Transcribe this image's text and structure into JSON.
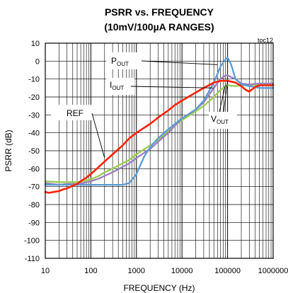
{
  "chart_data": {
    "type": "line",
    "title_line1": "PSRR vs. FREQUENCY",
    "title_line2": "(10mV/100µA RANGES)",
    "tag": "toc12",
    "xlabel": "FREQUENCY (Hz)",
    "ylabel": "PSRR (dB)",
    "xscale": "log",
    "xlim": [
      10,
      1000000
    ],
    "ylim": [
      -110,
      10
    ],
    "grid": true,
    "x_ticks": [
      10,
      100,
      1000,
      10000,
      100000,
      1000000
    ],
    "x_tick_labels": [
      "10",
      "100",
      "1000",
      "10000",
      "100000",
      "1000000"
    ],
    "y_ticks": [
      10,
      0,
      -10,
      -20,
      -30,
      -40,
      -50,
      -60,
      -70,
      -80,
      -90,
      -100,
      -110
    ],
    "y_tick_labels": [
      "10",
      "0",
      "-10",
      "-20",
      "-30",
      "-40",
      "-50",
      "-60",
      "-70",
      "-80",
      "-90",
      "-100",
      "-110"
    ],
    "colors": {
      "ref": "#ff2200",
      "pout": "#5b9bd5",
      "iout": "#9b7fc1",
      "vout": "#9acd50"
    },
    "series": [
      {
        "id": "ref",
        "name": "REF",
        "color": "#ff2200",
        "x": [
          10,
          12,
          15,
          20,
          25,
          30,
          40,
          50,
          60,
          80,
          100,
          150,
          200,
          300,
          500,
          700,
          1000,
          2000,
          3000,
          5000,
          7000,
          10000,
          20000,
          30000,
          50000,
          70000,
          100000,
          150000,
          200000,
          250000,
          300000,
          400000,
          500000,
          700000,
          1000000
        ],
        "values": [
          -73,
          -73.5,
          -73,
          -72.5,
          -71.5,
          -71,
          -69.5,
          -68.5,
          -67,
          -65,
          -63,
          -59,
          -56,
          -52,
          -47,
          -43,
          -40,
          -35,
          -31.5,
          -27.5,
          -24.5,
          -22,
          -17.5,
          -15,
          -12,
          -11,
          -11,
          -12,
          -14,
          -16,
          -17,
          -14.5,
          -13.5,
          -13.5,
          -13.5
        ]
      },
      {
        "id": "pout",
        "name": "P",
        "name_sub": "OUT",
        "color": "#5b9bd5",
        "x": [
          10,
          20,
          30,
          50,
          70,
          100,
          200,
          300,
          500,
          700,
          1000,
          1500,
          2000,
          3000,
          5000,
          7000,
          10000,
          20000,
          30000,
          50000,
          70000,
          90000,
          100000,
          120000,
          150000,
          200000,
          300000,
          500000,
          1000000
        ],
        "values": [
          -69,
          -69,
          -69,
          -69,
          -69,
          -69,
          -69,
          -69,
          -69,
          -68,
          -63,
          -53,
          -48,
          -43,
          -38,
          -35,
          -32,
          -27,
          -22,
          -12,
          -3,
          1,
          2,
          -2,
          -10,
          -13,
          -14,
          -15,
          -15
        ]
      },
      {
        "id": "iout",
        "name": "I",
        "name_sub": "OUT",
        "color": "#9b7fc1",
        "x": [
          10,
          20,
          30,
          50,
          70,
          100,
          150,
          200,
          300,
          500,
          700,
          1000,
          2000,
          3000,
          5000,
          7000,
          10000,
          20000,
          30000,
          50000,
          70000,
          90000,
          100000,
          150000,
          200000,
          300000,
          500000,
          700000,
          1000000
        ],
        "values": [
          -68,
          -69,
          -68.5,
          -68.5,
          -68,
          -67,
          -65.5,
          -64,
          -62,
          -59,
          -57,
          -54,
          -49,
          -45,
          -40,
          -36,
          -32,
          -27,
          -23,
          -15,
          -10,
          -8,
          -8,
          -10,
          -12.5,
          -13,
          -12.5,
          -12.5,
          -12.5
        ]
      },
      {
        "id": "vout",
        "name": "V",
        "name_sub": "OUT",
        "color": "#9acd50",
        "x": [
          10,
          20,
          30,
          50,
          70,
          100,
          150,
          200,
          300,
          500,
          700,
          1000,
          2000,
          3000,
          5000,
          7000,
          10000,
          20000,
          30000,
          50000,
          70000,
          90000,
          100000,
          150000,
          200000,
          300000,
          500000,
          700000,
          1000000
        ],
        "values": [
          -67,
          -67.5,
          -67.5,
          -67.5,
          -67,
          -66,
          -64,
          -62,
          -60,
          -57,
          -55,
          -52,
          -47,
          -44,
          -39,
          -36,
          -33,
          -28,
          -25,
          -20,
          -16,
          -14,
          -13.5,
          -14,
          -13.5,
          -13.5,
          -13,
          -13,
          -13
        ]
      }
    ]
  }
}
